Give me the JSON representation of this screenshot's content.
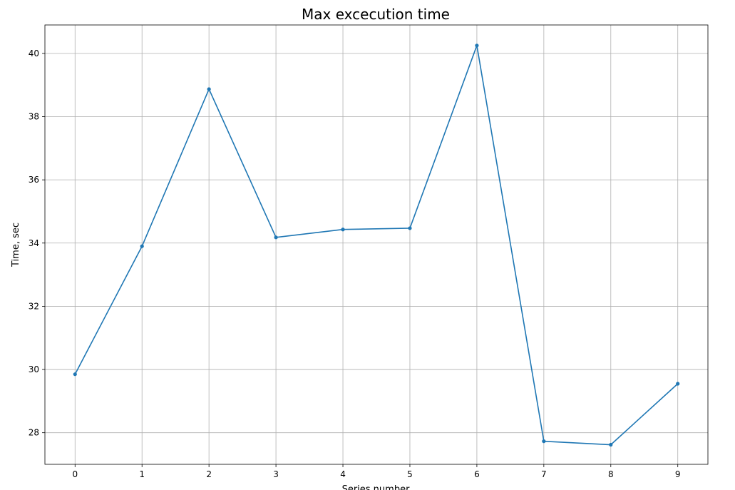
{
  "chart_data": {
    "type": "line",
    "title": "Max excecution time",
    "xlabel": "Series number",
    "ylabel": "Time, sec",
    "x": [
      0,
      1,
      2,
      3,
      4,
      5,
      6,
      7,
      8,
      9
    ],
    "series": [
      {
        "values": [
          29.85,
          33.9,
          38.87,
          34.18,
          34.43,
          34.47,
          40.25,
          27.73,
          27.62,
          29.55
        ],
        "color": "#1f77b4",
        "marker": "circle"
      }
    ],
    "xlim": [
      -0.45,
      9.45
    ],
    "ylim": [
      27.0,
      40.9
    ],
    "xticks": [
      0,
      1,
      2,
      3,
      4,
      5,
      6,
      7,
      8,
      9
    ],
    "yticks": [
      28,
      30,
      32,
      34,
      36,
      38,
      40
    ],
    "grid": true,
    "grid_color": "#b0b0b0",
    "axis_color": "#000000"
  }
}
